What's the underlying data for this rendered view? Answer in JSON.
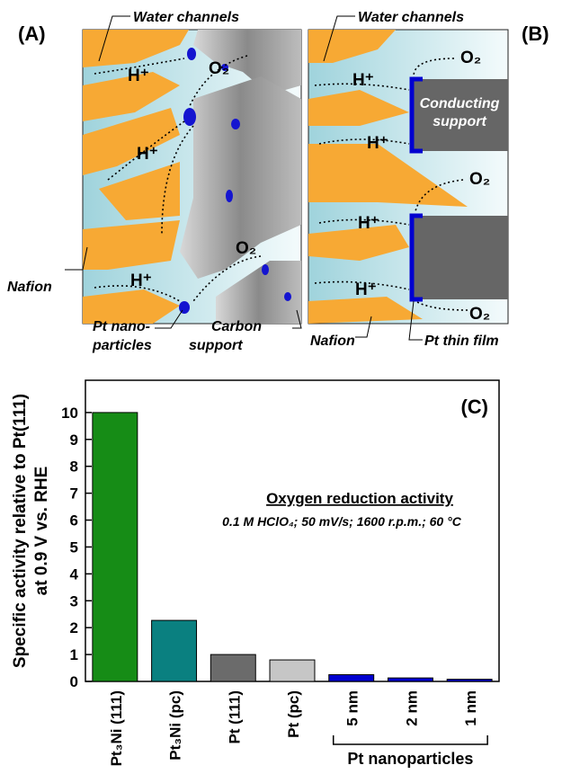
{
  "diagram_a": {
    "label": "(A)",
    "water_channels": "Water channels",
    "h_plus": [
      "H⁺",
      "H⁺",
      "H⁺"
    ],
    "o2": [
      "O₂",
      "O₂"
    ],
    "nafion": "Nafion",
    "pt_lines": [
      "Pt nano-",
      "particles"
    ],
    "carbon_lines": [
      "Carbon",
      "support"
    ]
  },
  "diagram_b": {
    "label": "(B)",
    "water_channels": "Water channels",
    "h_plus": [
      "H⁺",
      "H⁺",
      "H⁺",
      "H⁺"
    ],
    "o2": [
      "O₂",
      "O₂",
      "O₂"
    ],
    "conducting_lines": [
      "Conducting",
      "support"
    ],
    "nafion": "Nafion",
    "pt_film": "Pt thin film"
  },
  "chart_data": {
    "type": "bar",
    "panel_label": "(C)",
    "y_label_lines": [
      "Specific activity relative to Pt(111)",
      "at 0.9 V vs. RHE"
    ],
    "annotation_title": "Oxygen reduction activity",
    "annotation_text": "0.1 M HClO₄; 50 mV/s; 1600 r.p.m.; 60 °C",
    "group_label": "Pt nanoparticles",
    "categories": [
      "Pt₃Ni (111)",
      "Pt₃Ni (pc)",
      "Pt (111)",
      "Pt (pc)",
      "5 nm",
      "2 nm",
      "1 nm"
    ],
    "values": [
      10,
      2.27,
      1.0,
      0.8,
      0.25,
      0.13,
      0.08
    ],
    "colors": [
      "#168c16",
      "#0a8080",
      "#6b6b6b",
      "#c6c6c6",
      "#0000d0",
      "#0000d0",
      "#0000d0"
    ],
    "ylim": [
      0,
      11.2
    ],
    "yticks": [
      0,
      1,
      2,
      3,
      4,
      5,
      6,
      7,
      8,
      9,
      10
    ]
  }
}
